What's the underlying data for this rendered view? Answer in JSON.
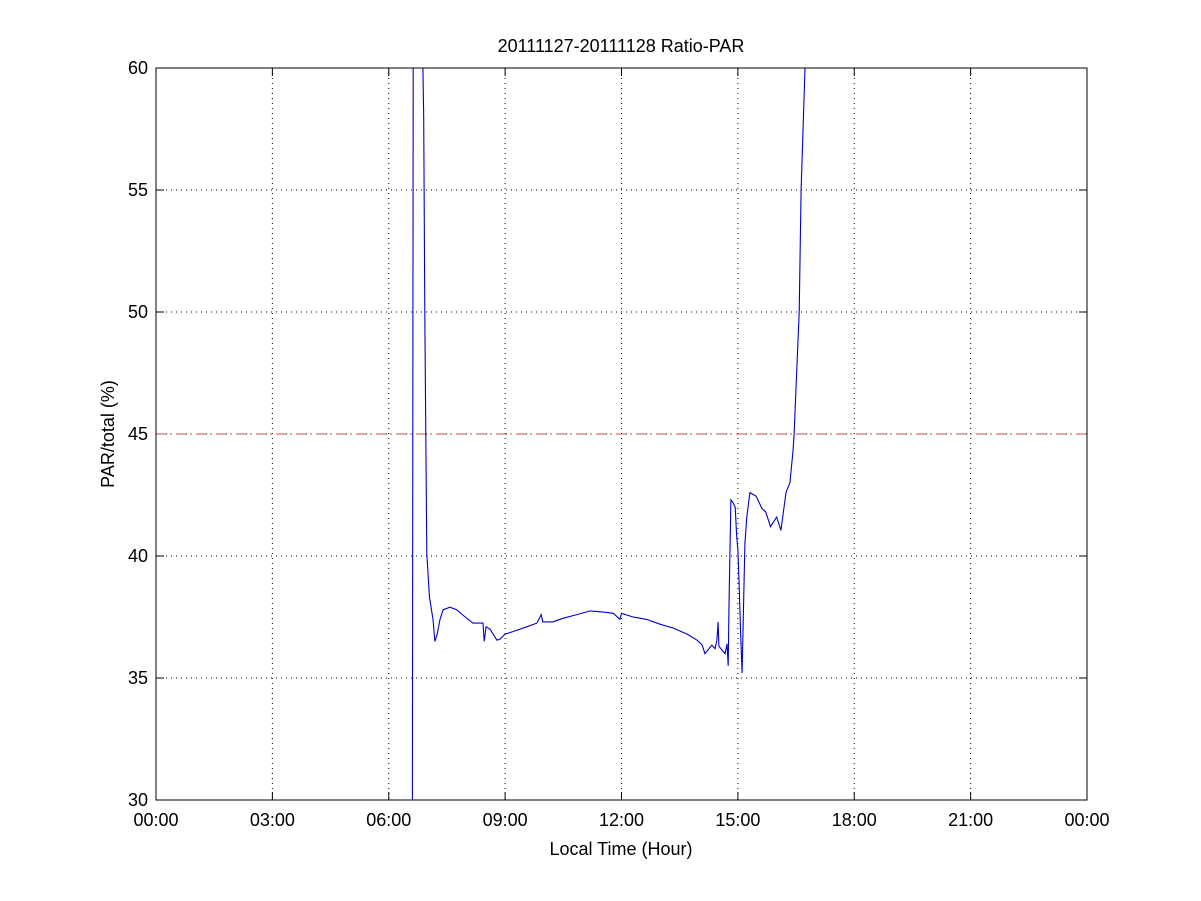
{
  "chart_data": {
    "type": "line",
    "title": "20111127-20111128 Ratio-PAR",
    "xlabel": "Local Time (Hour)",
    "ylabel": "PAR/total (%)",
    "xlim": [
      0,
      24
    ],
    "ylim": [
      30,
      60
    ],
    "xticks": [
      0,
      3,
      6,
      9,
      12,
      15,
      18,
      21,
      24
    ],
    "xtick_labels": [
      "00:00",
      "03:00",
      "06:00",
      "09:00",
      "12:00",
      "15:00",
      "18:00",
      "21:00",
      "00:00"
    ],
    "yticks": [
      30,
      35,
      40,
      45,
      50,
      55,
      60
    ],
    "ytick_labels": [
      "30",
      "35",
      "40",
      "45",
      "50",
      "55",
      "60"
    ],
    "grid": true,
    "reference_line": {
      "y": 45,
      "color": "#c0504d",
      "style": "dash-dot"
    },
    "series": [
      {
        "color": "#0000cc",
        "points": [
          [
            6.61,
            20
          ],
          [
            6.63,
            80
          ],
          [
            6.88,
            80
          ],
          [
            6.9,
            58
          ],
          [
            6.93,
            50
          ],
          [
            6.96,
            44
          ],
          [
            6.98,
            40.1
          ],
          [
            7.05,
            38.3
          ],
          [
            7.14,
            37.4
          ],
          [
            7.19,
            36.5
          ],
          [
            7.25,
            36.8
          ],
          [
            7.32,
            37.4
          ],
          [
            7.4,
            37.8
          ],
          [
            7.58,
            37.9
          ],
          [
            7.75,
            37.8
          ],
          [
            7.97,
            37.5
          ],
          [
            8.17,
            37.25
          ],
          [
            8.43,
            37.25
          ],
          [
            8.46,
            36.5
          ],
          [
            8.51,
            37.1
          ],
          [
            8.61,
            37.0
          ],
          [
            8.79,
            36.55
          ],
          [
            8.87,
            36.6
          ],
          [
            9.0,
            36.8
          ],
          [
            9.2,
            36.9
          ],
          [
            9.56,
            37.1
          ],
          [
            9.82,
            37.25
          ],
          [
            9.93,
            37.6
          ],
          [
            9.97,
            37.3
          ],
          [
            10.23,
            37.3
          ],
          [
            10.5,
            37.45
          ],
          [
            10.85,
            37.6
          ],
          [
            11.19,
            37.75
          ],
          [
            11.53,
            37.7
          ],
          [
            11.79,
            37.65
          ],
          [
            11.96,
            37.4
          ],
          [
            12.0,
            37.65
          ],
          [
            12.3,
            37.5
          ],
          [
            12.65,
            37.4
          ],
          [
            13.0,
            37.2
          ],
          [
            13.33,
            37.05
          ],
          [
            13.69,
            36.8
          ],
          [
            13.95,
            36.55
          ],
          [
            14.08,
            36.35
          ],
          [
            14.15,
            36.0
          ],
          [
            14.33,
            36.35
          ],
          [
            14.41,
            36.2
          ],
          [
            14.46,
            36.55
          ],
          [
            14.49,
            37.3
          ],
          [
            14.51,
            36.3
          ],
          [
            14.67,
            36.0
          ],
          [
            14.72,
            36.4
          ],
          [
            14.75,
            35.5
          ],
          [
            14.77,
            38.0
          ],
          [
            14.82,
            42.3
          ],
          [
            14.87,
            42.2
          ],
          [
            14.93,
            42.0
          ],
          [
            14.97,
            40.8
          ],
          [
            15.0,
            40.25
          ],
          [
            15.03,
            39.0
          ],
          [
            15.07,
            36.85
          ],
          [
            15.11,
            35.2
          ],
          [
            15.14,
            37.5
          ],
          [
            15.18,
            40.5
          ],
          [
            15.23,
            41.6
          ],
          [
            15.31,
            42.6
          ],
          [
            15.47,
            42.45
          ],
          [
            15.62,
            41.95
          ],
          [
            15.72,
            41.8
          ],
          [
            15.84,
            41.2
          ],
          [
            16.0,
            41.6
          ],
          [
            16.11,
            41.05
          ],
          [
            16.24,
            42.6
          ],
          [
            16.34,
            43.0
          ],
          [
            16.42,
            44.3
          ],
          [
            16.45,
            45.0
          ],
          [
            16.58,
            50.0
          ],
          [
            16.63,
            55.0
          ],
          [
            16.73,
            60.0
          ],
          [
            16.8,
            66
          ]
        ]
      }
    ]
  }
}
